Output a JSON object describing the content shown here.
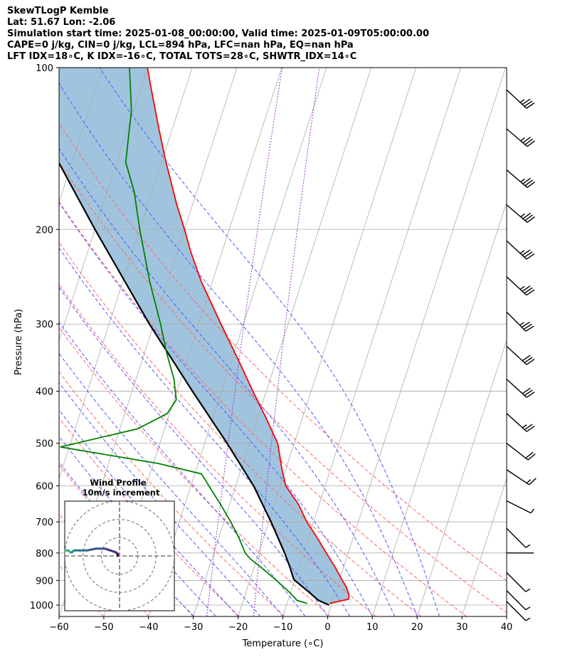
{
  "header": {
    "line1": "SkewTLogP Kemble",
    "line2": "Lat: 51.67   Lon: -2.06",
    "line3": "Simulation start time: 2025-01-08_00:00:00, Valid time: 2025-01-09T05:00:00.00",
    "line4": "CAPE=0 j/kg, CIN=0 j/kg, LCL=894 hPa, LFC=nan hPa, EQ=nan hPa",
    "line5": "LFT IDX=18∘C, K IDX=-16∘C, TOTAL TOTS=28∘C, SHWTR_IDX=14∘C"
  },
  "colors": {
    "temperature": "#ff0000",
    "dewpoint": "#008000",
    "parcel": "#000000",
    "cape_fill": "#a0c4de",
    "isotherm": "#aaaaaa",
    "dry_adiabat": "#ff6666",
    "moist_adiabat": "#5555ff",
    "mixing_ratio": "#9933cc"
  },
  "chart_data": {
    "type": "skewt",
    "xlabel": "Temperature (∘C)",
    "ylabel": "Pressure (hPa)",
    "xlim": [
      -60,
      40
    ],
    "ylim": [
      1050,
      100
    ],
    "x_ticks": [
      "−60",
      "−50",
      "−40",
      "−30",
      "−20",
      "−10",
      "0",
      "10",
      "20",
      "30",
      "40"
    ],
    "y_ticks": [
      {
        "p": 100,
        "label": "100"
      },
      {
        "p": 200,
        "label": "200"
      },
      {
        "p": 300,
        "label": "300"
      },
      {
        "p": 400,
        "label": "400"
      },
      {
        "p": 500,
        "label": "500"
      },
      {
        "p": 600,
        "label": "600"
      },
      {
        "p": 700,
        "label": "700"
      },
      {
        "p": 800,
        "label": "800"
      },
      {
        "p": 900,
        "label": "900"
      },
      {
        "p": 1000,
        "label": "1000"
      }
    ],
    "temperature": [
      [
        993,
        -0.5
      ],
      [
        975,
        3.4
      ],
      [
        960,
        3.3
      ],
      [
        925,
        2.0
      ],
      [
        900,
        0.7
      ],
      [
        850,
        -1.9
      ],
      [
        800,
        -4.9
      ],
      [
        750,
        -8.0
      ],
      [
        700,
        -11.5
      ],
      [
        650,
        -14.6
      ],
      [
        600,
        -18.8
      ],
      [
        560,
        -20.8
      ],
      [
        500,
        -23.7
      ],
      [
        450,
        -28.0
      ],
      [
        400,
        -33.0
      ],
      [
        350,
        -38.5
      ],
      [
        300,
        -45.0
      ],
      [
        250,
        -52.5
      ],
      [
        220,
        -57.0
      ],
      [
        200,
        -60.0
      ],
      [
        180,
        -63.5
      ],
      [
        150,
        -69.0
      ],
      [
        130,
        -73.0
      ],
      [
        110,
        -77.5
      ],
      [
        100,
        -80.0
      ]
    ],
    "dewpoint": [
      [
        993,
        -5.5
      ],
      [
        980,
        -8.0
      ],
      [
        950,
        -10.0
      ],
      [
        900,
        -14.0
      ],
      [
        850,
        -18.5
      ],
      [
        820,
        -21.5
      ],
      [
        800,
        -23.0
      ],
      [
        750,
        -25.5
      ],
      [
        700,
        -28.5
      ],
      [
        650,
        -32.0
      ],
      [
        600,
        -36.0
      ],
      [
        570,
        -38.5
      ],
      [
        545,
        -49.0
      ],
      [
        508,
        -72.0
      ],
      [
        470,
        -56.0
      ],
      [
        440,
        -50.5
      ],
      [
        415,
        -49.5
      ],
      [
        380,
        -51.5
      ],
      [
        340,
        -55.0
      ],
      [
        300,
        -58.5
      ],
      [
        250,
        -64.0
      ],
      [
        200,
        -70.0
      ],
      [
        170,
        -74.0
      ],
      [
        150,
        -78.0
      ],
      [
        120,
        -80.5
      ],
      [
        100,
        -84.0
      ]
    ],
    "parcel": [
      [
        1000,
        -0.5
      ],
      [
        980,
        -3.2
      ],
      [
        950,
        -5.6
      ],
      [
        900,
        -9.9
      ],
      [
        894,
        -10.3
      ],
      [
        850,
        -12.0
      ],
      [
        800,
        -14.2
      ],
      [
        700,
        -19.5
      ],
      [
        600,
        -26.0
      ],
      [
        500,
        -35.0
      ],
      [
        400,
        -46.5
      ],
      [
        300,
        -61.0
      ],
      [
        200,
        -80.0
      ],
      [
        150,
        -93.0
      ],
      [
        100,
        -113.0
      ]
    ],
    "isotherms_temps": [
      -150,
      -140,
      -130,
      -120,
      -110,
      -100,
      -90,
      -80,
      -70,
      -60,
      -50,
      -40,
      -30,
      -20,
      -10,
      0,
      10,
      20,
      30,
      40
    ],
    "dry_adiabat_thetas": [
      220,
      230,
      240,
      250,
      260,
      270,
      280,
      290,
      300,
      310,
      320
    ],
    "moist_adiabat_starts": [
      -30,
      -25,
      -20,
      -15,
      -10,
      -5,
      0,
      5,
      10,
      15,
      20,
      25
    ],
    "mixing_ratios": [
      0.4,
      1.0
    ],
    "wind_barbs": [
      {
        "p": 110,
        "u": -14,
        "v": 13
      },
      {
        "p": 130,
        "u": -14,
        "v": 12
      },
      {
        "p": 155,
        "u": -14,
        "v": 12
      },
      {
        "p": 180,
        "u": -14,
        "v": 12
      },
      {
        "p": 210,
        "u": -13,
        "v": 12
      },
      {
        "p": 245,
        "u": -13,
        "v": 12
      },
      {
        "p": 285,
        "u": -12,
        "v": 12
      },
      {
        "p": 330,
        "u": -12,
        "v": 11
      },
      {
        "p": 380,
        "u": -11,
        "v": 10
      },
      {
        "p": 440,
        "u": -10,
        "v": 9
      },
      {
        "p": 500,
        "u": -9,
        "v": 7
      },
      {
        "p": 560,
        "u": -6,
        "v": 4
      },
      {
        "p": 640,
        "u": -2,
        "v": 1
      },
      {
        "p": 720,
        "u": -1,
        "v": 1
      },
      {
        "p": 800,
        "u": -1,
        "v": 0
      },
      {
        "p": 870,
        "u": -1,
        "v": 1
      },
      {
        "p": 940,
        "u": -1,
        "v": 1
      },
      {
        "p": 985,
        "u": -1,
        "v": 1
      }
    ],
    "hodograph": {
      "title": "Wind Profile",
      "subtitle": "10m/s increment",
      "ring_speeds": [
        10,
        20,
        30
      ],
      "max_speed": 30,
      "points": [
        [
          -1,
          0
        ],
        [
          -1,
          1
        ],
        [
          -2,
          2
        ],
        [
          -5,
          3
        ],
        [
          -8,
          4
        ],
        [
          -13,
          4
        ],
        [
          -18,
          3
        ],
        [
          -22,
          3
        ],
        [
          -25,
          3
        ],
        [
          -26,
          2
        ],
        [
          -27,
          2
        ],
        [
          -28,
          3
        ],
        [
          -30,
          3
        ],
        [
          -31,
          1
        ],
        [
          -31,
          0
        ],
        [
          -30,
          2
        ],
        [
          -32,
          2
        ],
        [
          -31,
          3
        ]
      ]
    }
  }
}
